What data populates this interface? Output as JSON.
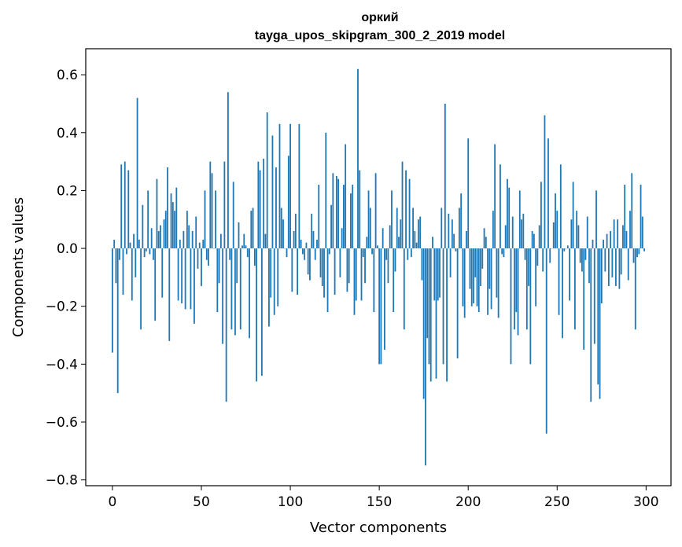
{
  "chart_data": {
    "type": "bar",
    "title_line1": "оркий",
    "title_line2": "tayga_upos_skipgram_300_2_2019 model",
    "xlabel": "Vector components",
    "ylabel": "Components values",
    "xlim": [
      -15,
      314
    ],
    "ylim": [
      -0.82,
      0.69
    ],
    "x_ticks": [
      0,
      50,
      100,
      150,
      200,
      250,
      300
    ],
    "y_ticks": [
      -0.8,
      -0.6,
      -0.4,
      -0.2,
      0.0,
      0.2,
      0.4,
      0.6
    ],
    "x_tick_labels": [
      "0",
      "50",
      "100",
      "150",
      "200",
      "250",
      "300"
    ],
    "y_tick_labels": [
      "−0.8",
      "−0.6",
      "−0.4",
      "−0.2",
      "0.0",
      "0.2",
      "0.4",
      "0.6"
    ],
    "bar_color": "#1f77b4",
    "values": [
      -0.36,
      0.03,
      -0.12,
      -0.5,
      -0.04,
      0.29,
      -0.16,
      0.3,
      -0.02,
      0.27,
      0.02,
      -0.18,
      0.05,
      -0.1,
      0.52,
      0.03,
      -0.28,
      0.15,
      -0.03,
      -0.01,
      0.2,
      -0.02,
      0.07,
      -0.04,
      -0.25,
      0.24,
      0.06,
      0.08,
      -0.17,
      0.1,
      0.13,
      0.28,
      -0.32,
      0.19,
      0.16,
      0.13,
      0.21,
      -0.18,
      0.03,
      -0.19,
      0.06,
      -0.21,
      0.13,
      0.08,
      -0.21,
      0.06,
      -0.26,
      0.11,
      -0.07,
      0.02,
      -0.13,
      0.03,
      0.2,
      -0.04,
      -0.06,
      0.3,
      0.26,
      0.0,
      0.2,
      -0.22,
      -0.12,
      0.05,
      -0.33,
      0.3,
      -0.53,
      0.54,
      -0.04,
      -0.28,
      0.23,
      -0.3,
      -0.12,
      0.09,
      -0.28,
      0.01,
      0.05,
      0.01,
      -0.03,
      -0.31,
      0.13,
      0.14,
      -0.06,
      -0.46,
      0.3,
      0.27,
      -0.44,
      0.31,
      0.05,
      0.47,
      -0.27,
      -0.17,
      0.39,
      -0.23,
      0.28,
      -0.2,
      0.43,
      0.14,
      0.1,
      0.0,
      -0.03,
      0.32,
      0.43,
      -0.15,
      0.06,
      0.12,
      -0.16,
      0.43,
      0.03,
      -0.02,
      -0.04,
      0.02,
      -0.09,
      -0.11,
      0.12,
      0.06,
      -0.04,
      0.03,
      0.22,
      -0.1,
      -0.13,
      -0.17,
      0.4,
      -0.22,
      -0.02,
      0.15,
      0.26,
      -0.16,
      0.25,
      0.24,
      -0.1,
      0.07,
      0.22,
      0.36,
      -0.15,
      -0.12,
      0.19,
      0.22,
      -0.23,
      -0.18,
      0.62,
      0.27,
      -0.18,
      -0.03,
      -0.12,
      0.04,
      0.2,
      0.14,
      -0.02,
      -0.22,
      0.26,
      0.01,
      -0.4,
      -0.4,
      0.07,
      -0.35,
      -0.04,
      -0.12,
      0.08,
      0.2,
      -0.22,
      -0.08,
      0.14,
      0.04,
      0.1,
      0.3,
      -0.28,
      0.27,
      -0.04,
      0.24,
      -0.03,
      0.14,
      0.06,
      0.02,
      0.1,
      0.11,
      -0.11,
      -0.52,
      -0.75,
      -0.31,
      -0.4,
      -0.46,
      0.04,
      -0.18,
      -0.45,
      -0.18,
      -0.17,
      0.14,
      -0.4,
      0.5,
      -0.46,
      0.12,
      -0.1,
      0.1,
      0.05,
      -0.01,
      -0.38,
      0.14,
      0.19,
      -0.2,
      -0.24,
      0.06,
      0.38,
      -0.14,
      -0.2,
      -0.19,
      -0.1,
      -0.2,
      -0.22,
      -0.13,
      -0.07,
      0.07,
      0.04,
      -0.23,
      -0.14,
      -0.21,
      0.13,
      0.36,
      -0.17,
      -0.24,
      0.29,
      -0.02,
      -0.03,
      0.08,
      0.24,
      0.21,
      -0.4,
      0.11,
      -0.28,
      -0.22,
      -0.3,
      0.2,
      0.1,
      0.12,
      -0.04,
      -0.28,
      -0.13,
      -0.4,
      0.06,
      0.05,
      -0.2,
      -0.06,
      0.08,
      0.23,
      -0.08,
      0.46,
      -0.64,
      0.38,
      -0.05,
      0.0,
      0.09,
      0.19,
      0.13,
      -0.23,
      0.29,
      -0.31,
      -0.01,
      0.0,
      0.01,
      -0.18,
      0.1,
      0.23,
      -0.28,
      0.13,
      0.08,
      -0.05,
      -0.08,
      -0.35,
      -0.04,
      0.11,
      -0.12,
      -0.53,
      0.03,
      -0.33,
      0.2,
      -0.47,
      -0.52,
      -0.19,
      0.03,
      -0.08,
      0.05,
      -0.13,
      0.06,
      -0.1,
      0.1,
      -0.13,
      0.1,
      -0.14,
      -0.09,
      0.08,
      0.22,
      0.06,
      -0.11,
      0.13,
      0.26,
      -0.05,
      -0.28,
      -0.03,
      -0.02,
      0.22,
      0.11,
      -0.01
    ]
  }
}
